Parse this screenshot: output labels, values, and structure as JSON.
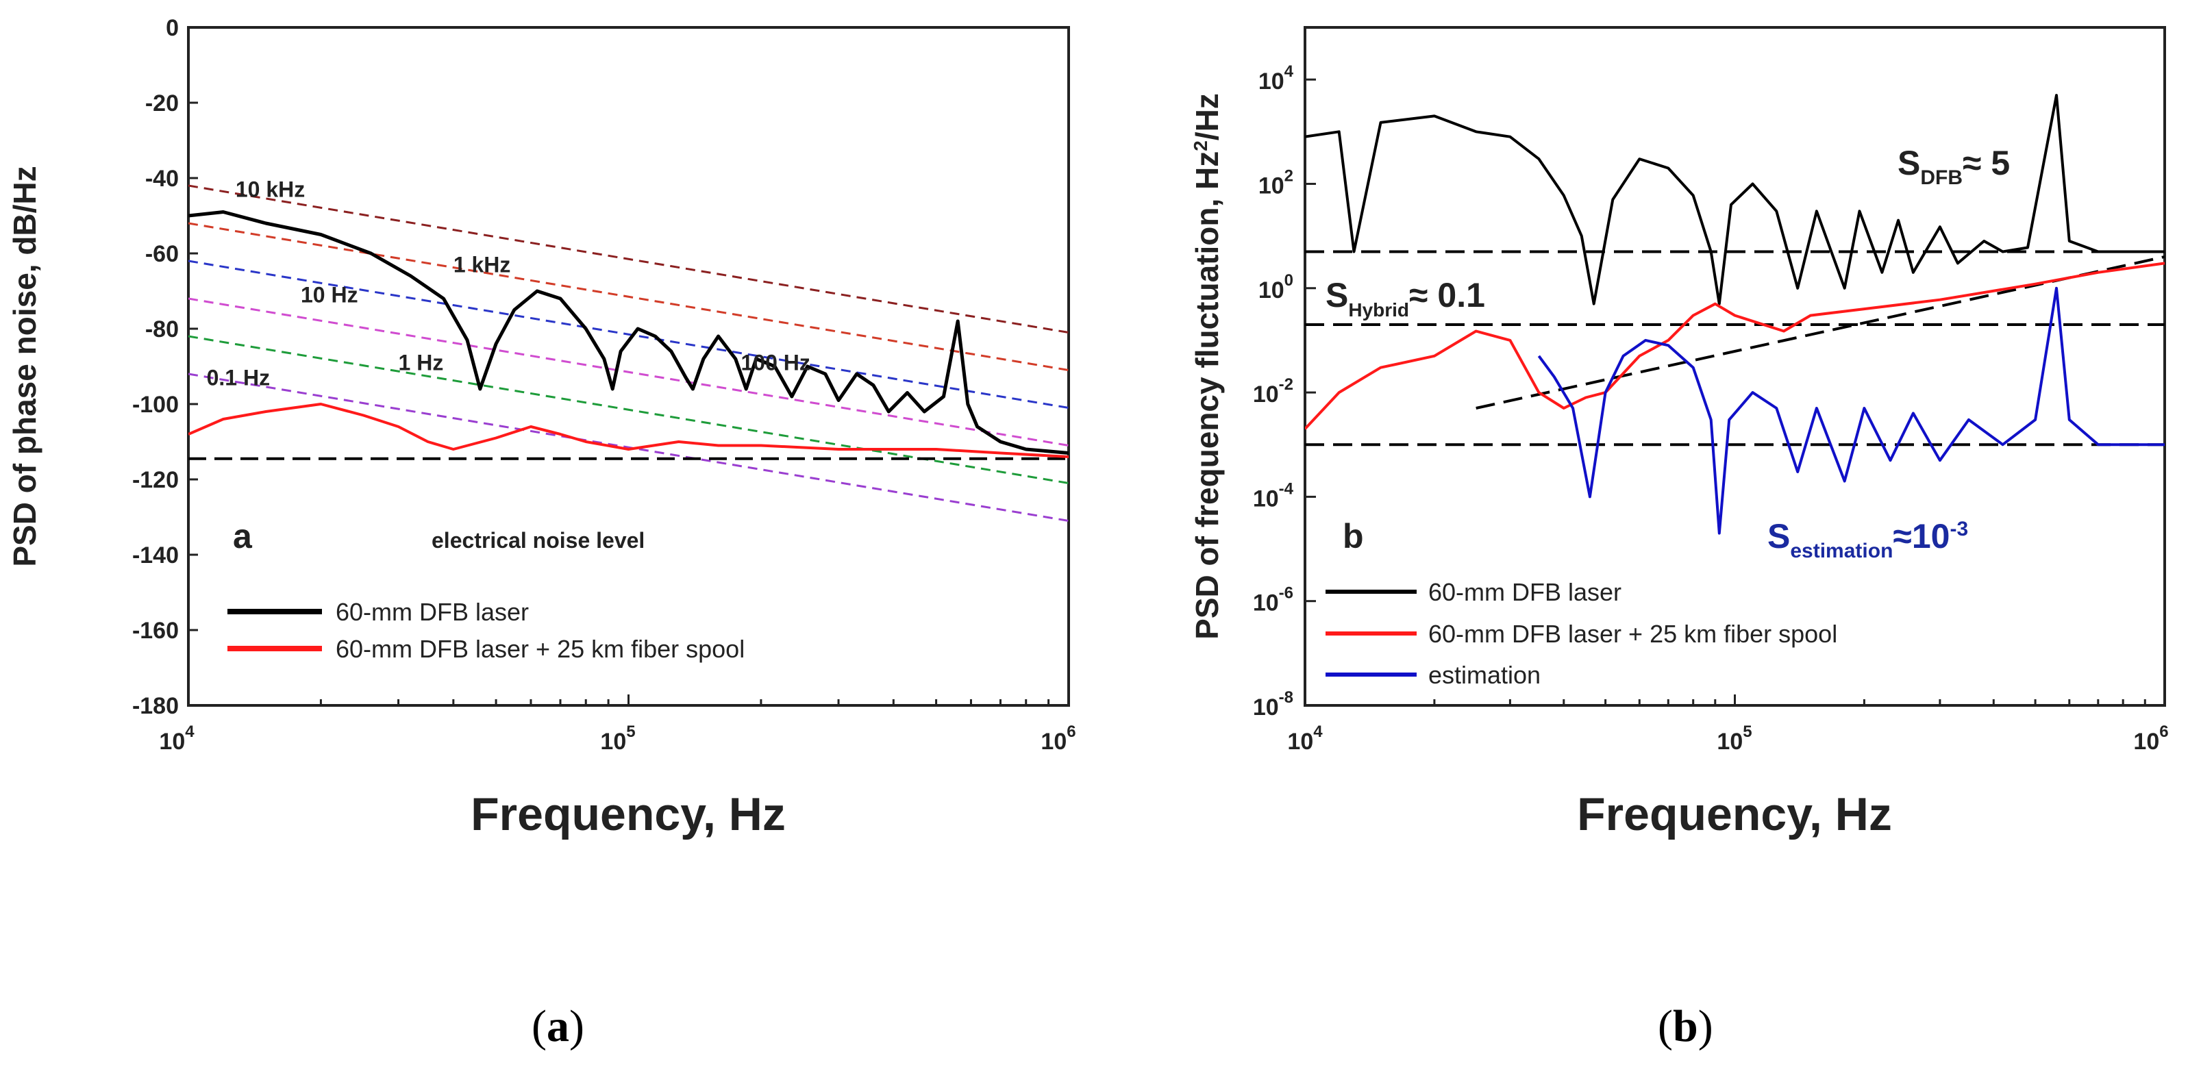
{
  "colors": {
    "black": "#000000",
    "red": "#ff1a1a",
    "blue": "#1010c8",
    "axis": "#222222"
  },
  "captions": [
    {
      "paren_open": "(",
      "letter": "a",
      "paren_close": ")"
    },
    {
      "paren_open": "(",
      "letter": "b",
      "paren_close": ")"
    }
  ],
  "chart_data": [
    {
      "type": "line",
      "panel_letter": "a",
      "xlabel": "Frequency, Hz",
      "ylabel": "PSD of phase noise, dB/Hz",
      "xscale": "log",
      "xlim": [
        10000,
        1000000
      ],
      "ylim": [
        -180,
        0
      ],
      "xticks": [
        {
          "base": "10",
          "exp": "4"
        },
        {
          "base": "10",
          "exp": "5"
        },
        {
          "base": "10",
          "exp": "6"
        }
      ],
      "yticks": [
        "0",
        "-20",
        "-40",
        "-60",
        "-80",
        "-100",
        "-120",
        "-140",
        "-160",
        "-180"
      ],
      "series": [
        {
          "name": "60-mm DFB laser",
          "color": "#000000",
          "x": [
            10000,
            12000,
            15000,
            20000,
            26000,
            32000,
            38000,
            43000,
            46000,
            50000,
            55000,
            62000,
            70000,
            80000,
            88000,
            92000,
            96000,
            105000,
            115000,
            125000,
            135000,
            140000,
            148000,
            160000,
            175000,
            185000,
            195000,
            215000,
            235000,
            255000,
            280000,
            300000,
            330000,
            360000,
            390000,
            430000,
            470000,
            520000,
            560000,
            590000,
            620000,
            700000,
            800000,
            1000000
          ],
          "y": [
            -50,
            -49,
            -52,
            -55,
            -60,
            -66,
            -72,
            -83,
            -96,
            -84,
            -75,
            -70,
            -72,
            -80,
            -88,
            -96,
            -86,
            -80,
            -82,
            -86,
            -93,
            -96,
            -88,
            -82,
            -88,
            -96,
            -88,
            -90,
            -98,
            -90,
            -92,
            -99,
            -92,
            -95,
            -102,
            -97,
            -102,
            -98,
            -78,
            -100,
            -106,
            -110,
            -112,
            -113
          ]
        },
        {
          "name": "60-mm DFB laser + 25 km fiber spool",
          "color": "#ff1a1a",
          "x": [
            10000,
            12000,
            15000,
            20000,
            25000,
            30000,
            35000,
            40000,
            50000,
            60000,
            70000,
            80000,
            100000,
            130000,
            160000,
            200000,
            300000,
            500000,
            700000,
            1000000
          ],
          "y": [
            -108,
            -104,
            -102,
            -100,
            -103,
            -106,
            -110,
            -112,
            -109,
            -106,
            -108,
            -110,
            -112,
            -110,
            -111,
            -111,
            -112,
            -112,
            -113,
            -114
          ]
        }
      ],
      "reference_lines": [
        {
          "color": "#8b2020",
          "y_at_xmin": -42,
          "y_at_xmax": -81
        },
        {
          "color": "#d23c28",
          "y_at_xmin": -52,
          "y_at_xmax": -91
        },
        {
          "color": "#2a36c8",
          "y_at_xmin": -62,
          "y_at_xmax": -101
        },
        {
          "color": "#d04cd0",
          "y_at_xmin": -72,
          "y_at_xmax": -111
        },
        {
          "color": "#1e9c3a",
          "y_at_xmin": -82,
          "y_at_xmax": -121
        },
        {
          "color": "#9a3ed0",
          "y_at_xmin": -92,
          "y_at_xmax": -131
        }
      ],
      "noise_level": {
        "y": -114.5,
        "label": "electrical noise level"
      },
      "annotations": [
        {
          "text": "10 kHz",
          "x": 12800,
          "y": -45
        },
        {
          "text": "1 kHz",
          "x": 40000,
          "y": -65
        },
        {
          "text": "10 Hz",
          "x": 18000,
          "y": -73
        },
        {
          "text": "1 Hz",
          "x": 30000,
          "y": -91
        },
        {
          "text": "0.1 Hz",
          "x": 11000,
          "y": -95
        },
        {
          "text": "100 Hz",
          "x": 180000,
          "y": -91
        }
      ],
      "legend_position": "lower-left"
    },
    {
      "type": "line",
      "panel_letter": "b",
      "xlabel": "Frequency, Hz",
      "ylabel_main": "PSD of frequency fluctuation, Hz",
      "ylabel_sup": "2",
      "ylabel_tail": "/Hz",
      "xscale": "log",
      "yscale": "log",
      "xlim": [
        10000,
        1000000
      ],
      "ylim": [
        1e-08,
        100000
      ],
      "xticks": [
        {
          "base": "10",
          "exp": "4"
        },
        {
          "base": "10",
          "exp": "5"
        },
        {
          "base": "10",
          "exp": "6"
        }
      ],
      "yticks": [
        {
          "base": "10",
          "exp": "4"
        },
        {
          "base": "10",
          "exp": "2"
        },
        {
          "base": "10",
          "exp": "0"
        },
        {
          "base": "10",
          "exp": "-2"
        },
        {
          "base": "10",
          "exp": "-4"
        },
        {
          "base": "10",
          "exp": "-6"
        },
        {
          "base": "10",
          "exp": "-8"
        }
      ],
      "series": [
        {
          "name": "60-mm DFB laser",
          "color": "#000000",
          "x": [
            10000,
            12000,
            13000,
            15000,
            20000,
            25000,
            30000,
            35000,
            40000,
            44000,
            47000,
            52000,
            60000,
            70000,
            80000,
            88000,
            92000,
            98000,
            110000,
            125000,
            140000,
            155000,
            180000,
            195000,
            220000,
            240000,
            260000,
            300000,
            330000,
            380000,
            420000,
            480000,
            560000,
            600000,
            700000,
            1000000
          ],
          "y": [
            800,
            1000,
            5,
            1500,
            2000,
            1000,
            800,
            300,
            60,
            10,
            0.5,
            50,
            300,
            200,
            60,
            5,
            0.5,
            40,
            100,
            30,
            1,
            30,
            1,
            30,
            2,
            20,
            2,
            15,
            3,
            8,
            5,
            6,
            5000,
            8,
            5,
            5
          ]
        },
        {
          "name": "60-mm DFB laser + 25 km fiber spool",
          "color": "#ff1a1a",
          "x": [
            10000,
            12000,
            15000,
            20000,
            25000,
            30000,
            35000,
            40000,
            45000,
            50000,
            60000,
            70000,
            80000,
            90000,
            100000,
            130000,
            150000,
            200000,
            300000,
            500000,
            700000,
            1000000
          ],
          "y": [
            0.002,
            0.01,
            0.03,
            0.05,
            0.15,
            0.1,
            0.01,
            0.005,
            0.008,
            0.01,
            0.05,
            0.1,
            0.3,
            0.5,
            0.3,
            0.15,
            0.3,
            0.4,
            0.6,
            1.2,
            2,
            3
          ]
        },
        {
          "name": "estimation",
          "color": "#1010c8",
          "x": [
            35000,
            38000,
            42000,
            46000,
            50000,
            55000,
            62000,
            70000,
            80000,
            88000,
            92000,
            97000,
            110000,
            125000,
            140000,
            155000,
            180000,
            200000,
            230000,
            260000,
            300000,
            350000,
            420000,
            500000,
            560000,
            600000,
            700000,
            1000000
          ],
          "y": [
            0.05,
            0.02,
            0.005,
            0.0001,
            0.01,
            0.05,
            0.1,
            0.08,
            0.03,
            0.003,
            2e-05,
            0.003,
            0.01,
            0.005,
            0.0003,
            0.005,
            0.0002,
            0.005,
            0.0005,
            0.004,
            0.0005,
            0.003,
            0.001,
            0.003,
            1,
            0.003,
            0.001,
            0.001
          ]
        }
      ],
      "level_lines": [
        {
          "y": 5
        },
        {
          "y": 0.2
        },
        {
          "y": 0.001
        }
      ],
      "trend_line": {
        "x": [
          25000,
          1000000
        ],
        "y": [
          0.005,
          4
        ]
      },
      "annotations": [
        {
          "main": "S",
          "sub": "DFB",
          "tail": "≈ 5",
          "x": 170000,
          "y": 150
        },
        {
          "main": "S",
          "sub": "Hybrid",
          "tail": "≈ 0.1",
          "x": 10500,
          "y": 0.4
        },
        {
          "main": "S",
          "sub": "estimation",
          "tail": "≈10",
          "sup": "-3",
          "x": 160000,
          "y": 1e-05
        }
      ],
      "legend_position": "lower-left"
    }
  ]
}
